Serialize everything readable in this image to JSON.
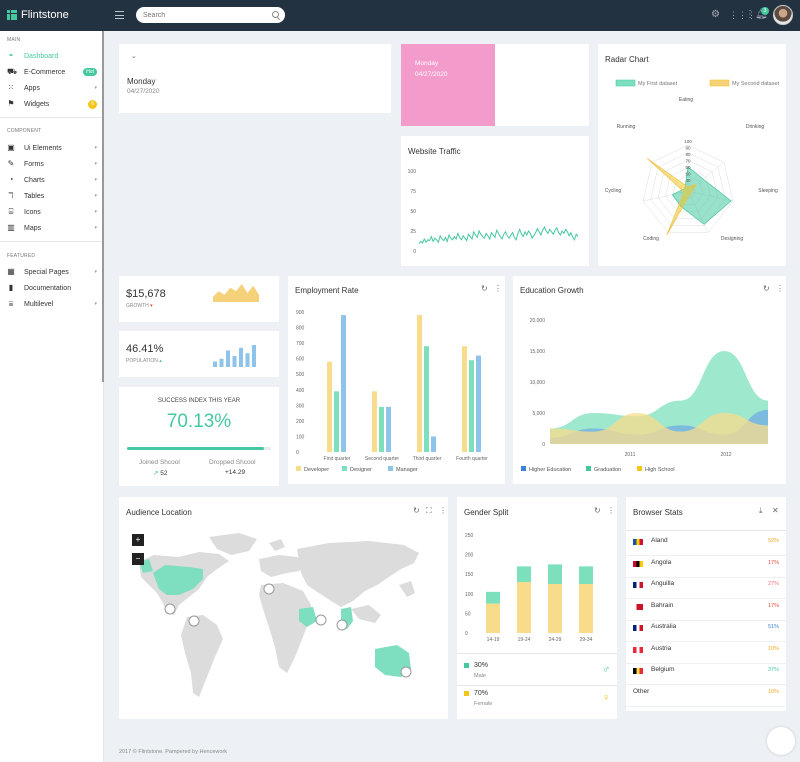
{
  "app": {
    "name": "Flintstone",
    "search_placeholder": "Search",
    "notif_count": "3"
  },
  "sidebar": {
    "sections": [
      "MAIN",
      "COMPONENT",
      "FEATURED"
    ],
    "main": [
      {
        "label": "Dashboard",
        "icon": "dashboard-icon"
      },
      {
        "label": "E-Commerce",
        "icon": "basket-icon",
        "badge": "Hot"
      },
      {
        "label": "Apps",
        "icon": "grid-icon"
      },
      {
        "label": "Widgets",
        "icon": "flag-icon",
        "count": "6"
      }
    ],
    "component": [
      {
        "label": "Ui Elements",
        "icon": "ui-icon"
      },
      {
        "label": "Forms",
        "icon": "pencil-icon"
      },
      {
        "label": "Charts",
        "icon": "chart-icon"
      },
      {
        "label": "Tables",
        "icon": "table-icon"
      },
      {
        "label": "Icons",
        "icon": "icons-icon"
      },
      {
        "label": "Maps",
        "icon": "map-icon"
      }
    ],
    "featured": [
      {
        "label": "Special Pages",
        "icon": "pages-icon"
      },
      {
        "label": "Documentation",
        "icon": "book-icon"
      },
      {
        "label": "Multilevel",
        "icon": "filter-icon"
      }
    ]
  },
  "date_card": {
    "day": "Monday",
    "date": "04/27/2020"
  },
  "pink_card": {
    "day": "Monday",
    "date": "04/27/2020"
  },
  "traffic": {
    "title": "Website Traffic",
    "ticks": [
      "100",
      "75",
      "50",
      "25",
      "0"
    ]
  },
  "radar": {
    "title": "Radar Chart",
    "legend": [
      "My First dataset",
      "My Second dataset"
    ],
    "labels": [
      "Eating",
      "Drinking",
      "Sleeping",
      "Designing",
      "Coding",
      "Cycling",
      "Running"
    ],
    "ticks": [
      "100",
      "90",
      "80",
      "70",
      "60",
      "50",
      "40"
    ]
  },
  "stats": [
    {
      "value": "$15,678",
      "label": "GROWTH"
    },
    {
      "value": "46.41%",
      "label": "POPULATION"
    }
  ],
  "success": {
    "title": "SUCCESS INDEX THIS YEAR",
    "value": "70.13%",
    "progress": 0.95,
    "joined_label": "Joined Shcool",
    "joined_value": "52",
    "dropped_label": "Dropped Shcool",
    "dropped_value": "+14.29"
  },
  "employment": {
    "title": "Employment Rate",
    "legend": [
      "Developer",
      "Designer",
      "Manager"
    ],
    "ticks": [
      "900",
      "800",
      "700",
      "600",
      "500",
      "400",
      "300",
      "200",
      "100",
      "0"
    ]
  },
  "education": {
    "title": "Education Growth",
    "legend": [
      "Higher Education",
      "Graduation",
      "High School"
    ],
    "ticks": [
      "20,000",
      "15,000",
      "10,000",
      "5,000",
      "0"
    ],
    "xticks": [
      "2011",
      "2012"
    ]
  },
  "audience": {
    "title": "Audience Location",
    "zoom_in": "+",
    "zoom_out": "−"
  },
  "gender": {
    "title": "Gender Split",
    "ticks": [
      "250",
      "200",
      "150",
      "100",
      "50",
      "0"
    ],
    "male_pct": "30%",
    "male_label": "Male",
    "female_pct": "70%",
    "female_label": "Female"
  },
  "browser": {
    "title": "Browser Stats",
    "rows": [
      {
        "name": "Aland",
        "pct": "52%",
        "color": "#f5a623",
        "flag": [
          "#1e4fa0",
          "#ffd100",
          "#d21034"
        ]
      },
      {
        "name": "Angola",
        "pct": "17%",
        "color": "#e84c3d",
        "flag": [
          "#cc092f",
          "#000000",
          "#ffcb00"
        ]
      },
      {
        "name": "Anguilla",
        "pct": "27%",
        "color": "#f0707a",
        "flag": [
          "#00247d",
          "#ffffff",
          "#cf142b"
        ]
      },
      {
        "name": "Bahrain",
        "pct": "17%",
        "color": "#e84c3d",
        "flag": [
          "#ffffff",
          "#ce1126",
          "#ce1126"
        ]
      },
      {
        "name": "Australia",
        "pct": "51%",
        "color": "#3b86d8",
        "flag": [
          "#00247d",
          "#ffffff",
          "#cf142b"
        ]
      },
      {
        "name": "Austria",
        "pct": "10%",
        "color": "#f5a623",
        "flag": [
          "#ed2939",
          "#ffffff",
          "#ed2939"
        ]
      },
      {
        "name": "Belgium",
        "pct": "37%",
        "color": "#45c8a0",
        "flag": [
          "#000000",
          "#fae042",
          "#ed2939"
        ]
      },
      {
        "name": "Other",
        "pct": "10%",
        "color": "#f5a623",
        "flag": null
      }
    ]
  },
  "footer": "2017 © Flintstone. Pampered by Hencework",
  "chart_data": [
    {
      "type": "line",
      "title": "Website Traffic",
      "ylim": [
        0,
        100
      ],
      "y": [
        9,
        12,
        10,
        15,
        11,
        14,
        13,
        18,
        12,
        16,
        14,
        11,
        19,
        15,
        13,
        17,
        12,
        20,
        16,
        14,
        18,
        15,
        22,
        17,
        14,
        19,
        16,
        13,
        21,
        18,
        15,
        24,
        20,
        17,
        25,
        21,
        18,
        16,
        22,
        19,
        15,
        23,
        20,
        17,
        26,
        22,
        18,
        15,
        21,
        24,
        19,
        16,
        20,
        23,
        17,
        14,
        22,
        27,
        21,
        18,
        24,
        20,
        25,
        22,
        16,
        19,
        23,
        28,
        24,
        20,
        26,
        30,
        25,
        22,
        27,
        24,
        21,
        26,
        29,
        23,
        20,
        25,
        22,
        27,
        24,
        19,
        23,
        17,
        14,
        21,
        18
      ]
    },
    {
      "type": "radar",
      "title": "Radar Chart",
      "categories": [
        "Eating",
        "Drinking",
        "Sleeping",
        "Designing",
        "Coding",
        "Cycling",
        "Running"
      ],
      "ylim": [
        40,
        100
      ],
      "series": [
        {
          "name": "My First dataset",
          "values": [
            65,
            59,
            90,
            81,
            56,
            55,
            40
          ]
        },
        {
          "name": "My Second dataset",
          "values": [
            28,
            48,
            40,
            19,
            96,
            27,
            100
          ]
        }
      ]
    },
    {
      "type": "bar",
      "title": "Employment Rate",
      "categories": [
        "First quarter",
        "Second quarter",
        "Third quarter",
        "Fourth quarter"
      ],
      "ylim": [
        0,
        900
      ],
      "series": [
        {
          "name": "Developer",
          "values": [
            580,
            390,
            880,
            680
          ]
        },
        {
          "name": "Designer",
          "values": [
            390,
            290,
            680,
            590
          ]
        },
        {
          "name": "Manager",
          "values": [
            880,
            290,
            100,
            620
          ]
        }
      ]
    },
    {
      "type": "area",
      "title": "Education Growth",
      "x": [
        2010.4,
        2010.8,
        2011.2,
        2011.6,
        2012.0,
        2012.4
      ],
      "ylim": [
        0,
        20000
      ],
      "series": [
        {
          "name": "Higher Education",
          "values": [
            1000,
            2500,
            1500,
            3000,
            1500,
            5500
          ]
        },
        {
          "name": "Graduation",
          "values": [
            2500,
            5000,
            4500,
            7000,
            15000,
            7000
          ]
        },
        {
          "name": "High School",
          "values": [
            2500,
            2000,
            5000,
            2000,
            5000,
            3000
          ]
        }
      ]
    },
    {
      "type": "bar",
      "title": "Gender Split",
      "categories": [
        "14-19",
        "19-24",
        "24-29",
        "29-34"
      ],
      "ylim": [
        0,
        250
      ],
      "series": [
        {
          "name": "Female",
          "values": [
            75,
            130,
            125,
            125
          ]
        },
        {
          "name": "Male",
          "values": [
            30,
            40,
            50,
            45
          ]
        }
      ]
    },
    {
      "type": "area",
      "title": "$15,678",
      "values": [
        3,
        6,
        4,
        8,
        6,
        10,
        5,
        9,
        4
      ]
    },
    {
      "type": "bar",
      "title": "46.41%",
      "values": [
        2,
        3,
        6,
        4,
        7,
        5,
        8
      ]
    }
  ]
}
